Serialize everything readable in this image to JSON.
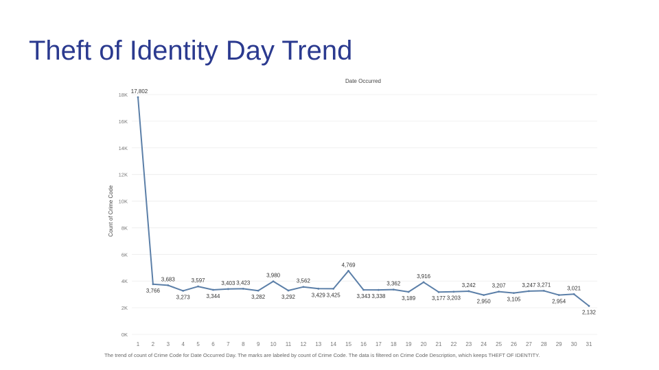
{
  "slide": {
    "title": "Theft of Identity Day Trend",
    "caption": "The trend of count of Crime Code for Date Occurred Day.  The marks are labeled by count of Crime Code. The data is filtered on Crime Code Description, which keeps THEFT OF IDENTITY."
  },
  "colors": {
    "title": "#2b3a8f",
    "line": "#5b7fa8",
    "grid": "#ececec",
    "axis_text": "#777777",
    "label_text": "#333333"
  },
  "chart_data": {
    "type": "line",
    "title": "Date Occurred",
    "xlabel": "",
    "ylabel": "Count of Crime Code",
    "ylim": [
      0,
      18000
    ],
    "yticks": [
      0,
      2000,
      4000,
      6000,
      8000,
      10000,
      12000,
      14000,
      16000,
      18000
    ],
    "ytick_labels": [
      "0K",
      "2K",
      "4K",
      "6K",
      "8K",
      "10K",
      "12K",
      "14K",
      "16K",
      "18K"
    ],
    "grid": true,
    "x": [
      1,
      2,
      3,
      4,
      5,
      6,
      7,
      8,
      9,
      10,
      11,
      12,
      13,
      14,
      15,
      16,
      17,
      18,
      19,
      20,
      21,
      22,
      23,
      24,
      25,
      26,
      27,
      28,
      29,
      30,
      31
    ],
    "values": [
      17802,
      3766,
      3683,
      3273,
      3597,
      3344,
      3403,
      3423,
      3282,
      3980,
      3292,
      3562,
      3429,
      3425,
      4769,
      3343,
      3338,
      3362,
      3189,
      3916,
      3177,
      3203,
      3242,
      2950,
      3207,
      3105,
      3247,
      3271,
      2954,
      3021,
      2132
    ],
    "value_labels": [
      "17,802",
      "3,766",
      "3,683",
      "3,273",
      "3,597",
      "3,344",
      "3,403",
      "3,423",
      "3,282",
      "3,980",
      "3,292",
      "3,562",
      "3,429",
      "3,425",
      "4,769",
      "3,343",
      "3,338",
      "3,362",
      "3,189",
      "3,916",
      "3,177",
      "3,203",
      "3,242",
      "2,950",
      "3,207",
      "3,105",
      "3,247",
      "3,271",
      "2,954",
      "3,021",
      "2,132"
    ],
    "label_position": [
      "above",
      "below",
      "above",
      "below",
      "above",
      "below",
      "above",
      "above",
      "below",
      "above",
      "below",
      "above",
      "below",
      "below",
      "above",
      "below",
      "below",
      "above",
      "below",
      "above",
      "below",
      "below",
      "above",
      "below",
      "above",
      "below",
      "above",
      "above",
      "below",
      "above",
      "below"
    ]
  }
}
